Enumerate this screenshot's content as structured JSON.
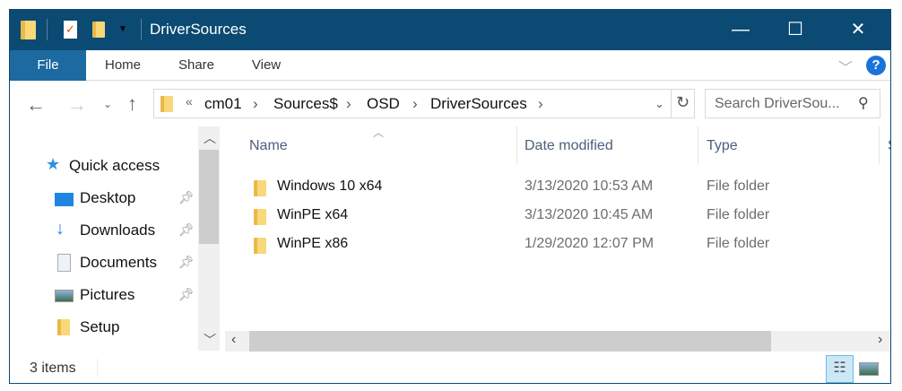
{
  "window": {
    "title": "DriverSources",
    "minimize_icon": "minimize-icon",
    "maximize_icon": "maximize-icon",
    "close_icon": "close-icon"
  },
  "ribbon": {
    "tabs": [
      {
        "label": "File"
      },
      {
        "label": "Home"
      },
      {
        "label": "Share"
      },
      {
        "label": "View"
      }
    ],
    "help": "?"
  },
  "address": {
    "overflow": "«",
    "crumbs": [
      "cm01",
      "Sources$",
      "OSD",
      "DriverSources"
    ]
  },
  "search": {
    "placeholder": "Search DriverSou..."
  },
  "nav": {
    "quick_access": "Quick access",
    "items": [
      {
        "label": "Desktop",
        "pinned": true
      },
      {
        "label": "Downloads",
        "pinned": true
      },
      {
        "label": "Documents",
        "pinned": true
      },
      {
        "label": "Pictures",
        "pinned": true
      },
      {
        "label": "Setup",
        "pinned": false
      }
    ]
  },
  "columns": {
    "name": "Name",
    "date": "Date modified",
    "type": "Type",
    "size": "S"
  },
  "files": [
    {
      "name": "Windows 10 x64",
      "date": "3/13/2020 10:53 AM",
      "type": "File folder"
    },
    {
      "name": "WinPE x64",
      "date": "3/13/2020 10:45 AM",
      "type": "File folder"
    },
    {
      "name": "WinPE x86",
      "date": "1/29/2020 12:07 PM",
      "type": "File folder"
    }
  ],
  "status": {
    "count": "3 items"
  },
  "colors": {
    "titlebar": "#0b4a73",
    "file_tab": "#1c6aa0",
    "help": "#1a73d9"
  }
}
